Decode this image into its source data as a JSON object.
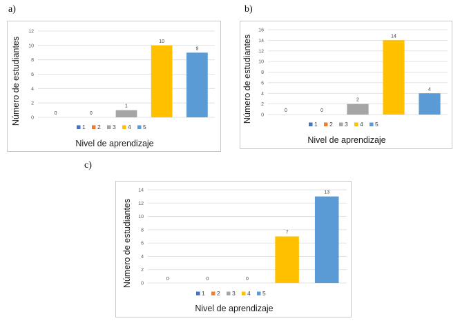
{
  "chart_data": [
    {
      "panel": "a)",
      "type": "bar",
      "categories": [
        "1",
        "2",
        "3",
        "4",
        "5"
      ],
      "values": [
        0,
        0,
        1,
        10,
        9
      ],
      "colors": [
        "#4472c4",
        "#ed7d31",
        "#a5a5a5",
        "#ffc000",
        "#5b9bd5"
      ],
      "ylim": [
        0,
        12
      ],
      "yticks": [
        0,
        2,
        4,
        6,
        8,
        10,
        12
      ],
      "xlabel": "Nivel de aprendizaje",
      "ylabel": "Número de estudiantes",
      "legend": [
        "1",
        "2",
        "3",
        "4",
        "5"
      ],
      "grid": true
    },
    {
      "panel": "b)",
      "type": "bar",
      "categories": [
        "1",
        "2",
        "3",
        "4",
        "5"
      ],
      "values": [
        0,
        0,
        2,
        14,
        4
      ],
      "colors": [
        "#4472c4",
        "#ed7d31",
        "#a5a5a5",
        "#ffc000",
        "#5b9bd5"
      ],
      "ylim": [
        0,
        16
      ],
      "yticks": [
        0,
        2,
        4,
        6,
        8,
        10,
        12,
        14,
        16
      ],
      "xlabel": "Nivel de aprendizaje",
      "ylabel": "Número de estudiantes",
      "legend": [
        "1",
        "2",
        "3",
        "4",
        "5"
      ],
      "grid": true
    },
    {
      "panel": "c)",
      "type": "bar",
      "categories": [
        "1",
        "2",
        "3",
        "4",
        "5"
      ],
      "values": [
        0,
        0,
        0,
        7,
        13
      ],
      "colors": [
        "#4472c4",
        "#ed7d31",
        "#a5a5a5",
        "#ffc000",
        "#5b9bd5"
      ],
      "ylim": [
        0,
        14
      ],
      "yticks": [
        0,
        2,
        4,
        6,
        8,
        10,
        12,
        14
      ],
      "xlabel": "Nivel de aprendizaje",
      "ylabel": "Número de estudiantes",
      "legend": [
        "1",
        "2",
        "3",
        "4",
        "5"
      ],
      "grid": true
    }
  ]
}
